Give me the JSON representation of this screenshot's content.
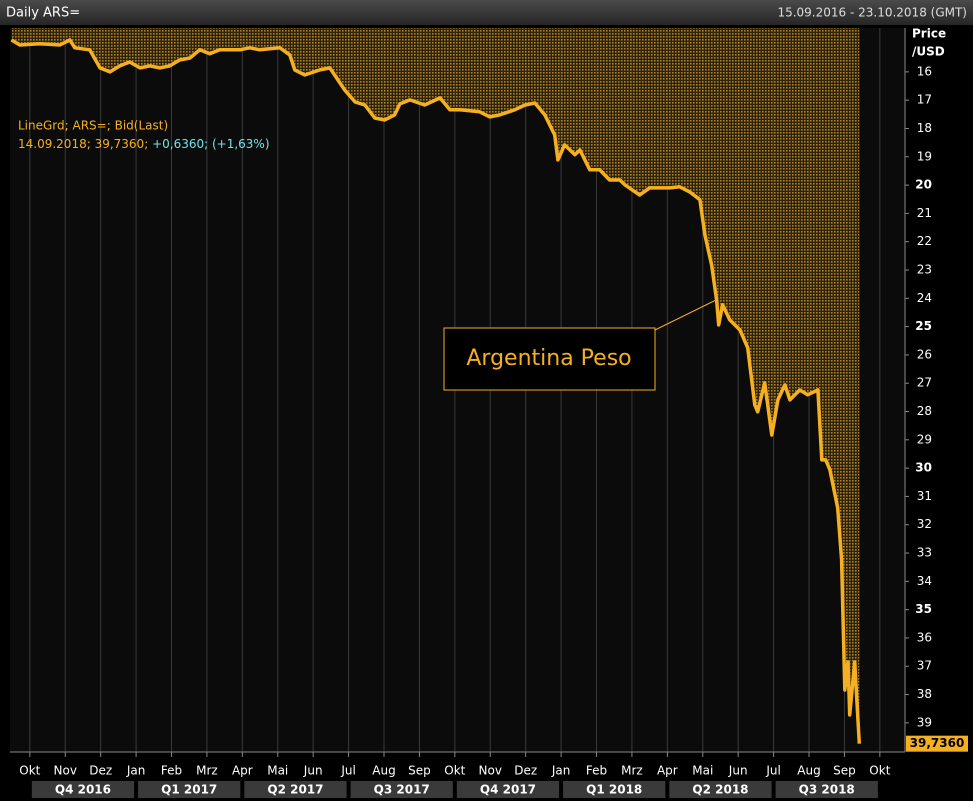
{
  "chart_data": {
    "type": "line",
    "title": "Daily ARS=",
    "date_range": "15.09.2016 - 23.10.2018 (GMT)",
    "y_label": [
      "Price",
      "/USD"
    ],
    "legend_lines": [
      "LineGrd; ARS=; Bid(Last)"
    ],
    "info": [
      "14.09.2018; 39,7360;",
      "+0,6360; (+1,63%)"
    ],
    "annotation": "Argentina Peso",
    "y_inverted": true,
    "grid": true,
    "series": [
      {
        "name": "Argentina Peso",
        "color": "#f5b021",
        "x": [
          -0.52,
          -0.28,
          0.28,
          0.85,
          1.13,
          1.27,
          1.69,
          1.98,
          2.26,
          2.54,
          2.82,
          3.11,
          3.39,
          3.67,
          3.95,
          4.23,
          4.52,
          4.8,
          5.08,
          5.36,
          5.93,
          6.21,
          6.49,
          7.06,
          7.34,
          7.48,
          7.76,
          8.19,
          8.47,
          8.89,
          9.18,
          9.46,
          9.74,
          10.02,
          10.3,
          10.45,
          10.73,
          11.15,
          11.58,
          11.86,
          12.14,
          12.7,
          12.99,
          13.27,
          13.69,
          13.98,
          14.26,
          14.54,
          14.82,
          14.91,
          15.1,
          15.39,
          15.53,
          15.81,
          16.09,
          16.37,
          16.66,
          16.8,
          17.22,
          17.5,
          18.07,
          18.35,
          18.63,
          18.92,
          19.06,
          19.25,
          19.39,
          19.45,
          19.56,
          19.76,
          20.05,
          20.27,
          20.47,
          20.55,
          20.75,
          20.95,
          21.12,
          21.32,
          21.46,
          21.74,
          21.96,
          22.25,
          22.36,
          22.47,
          22.59,
          22.81,
          22.92,
          23.01,
          23.1,
          23.15,
          23.29,
          23.42
        ],
        "values": [
          14.87,
          15.05,
          15.01,
          15.05,
          14.87,
          15.15,
          15.22,
          15.86,
          16.0,
          15.79,
          15.65,
          15.86,
          15.79,
          15.86,
          15.79,
          15.58,
          15.51,
          15.22,
          15.36,
          15.22,
          15.22,
          15.15,
          15.22,
          15.15,
          15.4,
          15.93,
          16.11,
          15.93,
          15.86,
          16.64,
          17.06,
          17.17,
          17.63,
          17.7,
          17.52,
          17.13,
          16.99,
          17.17,
          16.92,
          17.34,
          17.34,
          17.41,
          17.59,
          17.52,
          17.34,
          17.17,
          17.1,
          17.52,
          18.23,
          19.11,
          18.58,
          18.93,
          18.76,
          19.46,
          19.46,
          19.82,
          19.82,
          19.99,
          20.35,
          20.1,
          20.1,
          20.06,
          20.24,
          20.52,
          21.76,
          22.82,
          24.06,
          24.94,
          24.23,
          24.76,
          25.12,
          25.75,
          27.77,
          28.01,
          26.99,
          28.83,
          27.59,
          27.06,
          27.59,
          27.24,
          27.41,
          27.24,
          29.71,
          29.71,
          30.06,
          31.41,
          33.24,
          37.84,
          36.85,
          38.72,
          36.85,
          39.736
        ]
      }
    ],
    "last_label": {
      "value": 39.736,
      "label": "39,7360"
    },
    "xlim": [
      -0.56,
      24.71
    ],
    "xticks": [
      {
        "value": 0,
        "label": "Okt"
      },
      {
        "value": 1,
        "label": "Nov"
      },
      {
        "value": 2,
        "label": "Dez"
      },
      {
        "value": 3,
        "label": "Jan"
      },
      {
        "value": 4,
        "label": "Feb"
      },
      {
        "value": 5,
        "label": "Mrz"
      },
      {
        "value": 6,
        "label": "Apr"
      },
      {
        "value": 7,
        "label": "Mai"
      },
      {
        "value": 8,
        "label": "Jun"
      },
      {
        "value": 9,
        "label": "Jul"
      },
      {
        "value": 10,
        "label": "Aug"
      },
      {
        "value": 11,
        "label": "Sep"
      },
      {
        "value": 12,
        "label": "Okt"
      },
      {
        "value": 13,
        "label": "Nov"
      },
      {
        "value": 14,
        "label": "Dez"
      },
      {
        "value": 15,
        "label": "Jan"
      },
      {
        "value": 16,
        "label": "Feb"
      },
      {
        "value": 17,
        "label": "Mrz"
      },
      {
        "value": 18,
        "label": "Apr"
      },
      {
        "value": 19,
        "label": "Mai"
      },
      {
        "value": 20,
        "label": "Jun"
      },
      {
        "value": 21,
        "label": "Jul"
      },
      {
        "value": 22,
        "label": "Aug"
      },
      {
        "value": 23,
        "label": "Sep"
      },
      {
        "value": 24,
        "label": "Okt"
      }
    ],
    "quarters": [
      "Q4 2016",
      "Q1 2017",
      "Q2 2017",
      "Q3 2017",
      "Q4 2017",
      "Q1 2018",
      "Q2 2018",
      "Q3 2018"
    ],
    "ylim": [
      14.45,
      40.03
    ],
    "yticks": [
      16,
      17,
      18,
      19,
      20,
      21,
      22,
      23,
      24,
      25,
      26,
      27,
      28,
      29,
      30,
      31,
      32,
      33,
      34,
      35,
      36,
      37,
      38,
      39
    ]
  }
}
